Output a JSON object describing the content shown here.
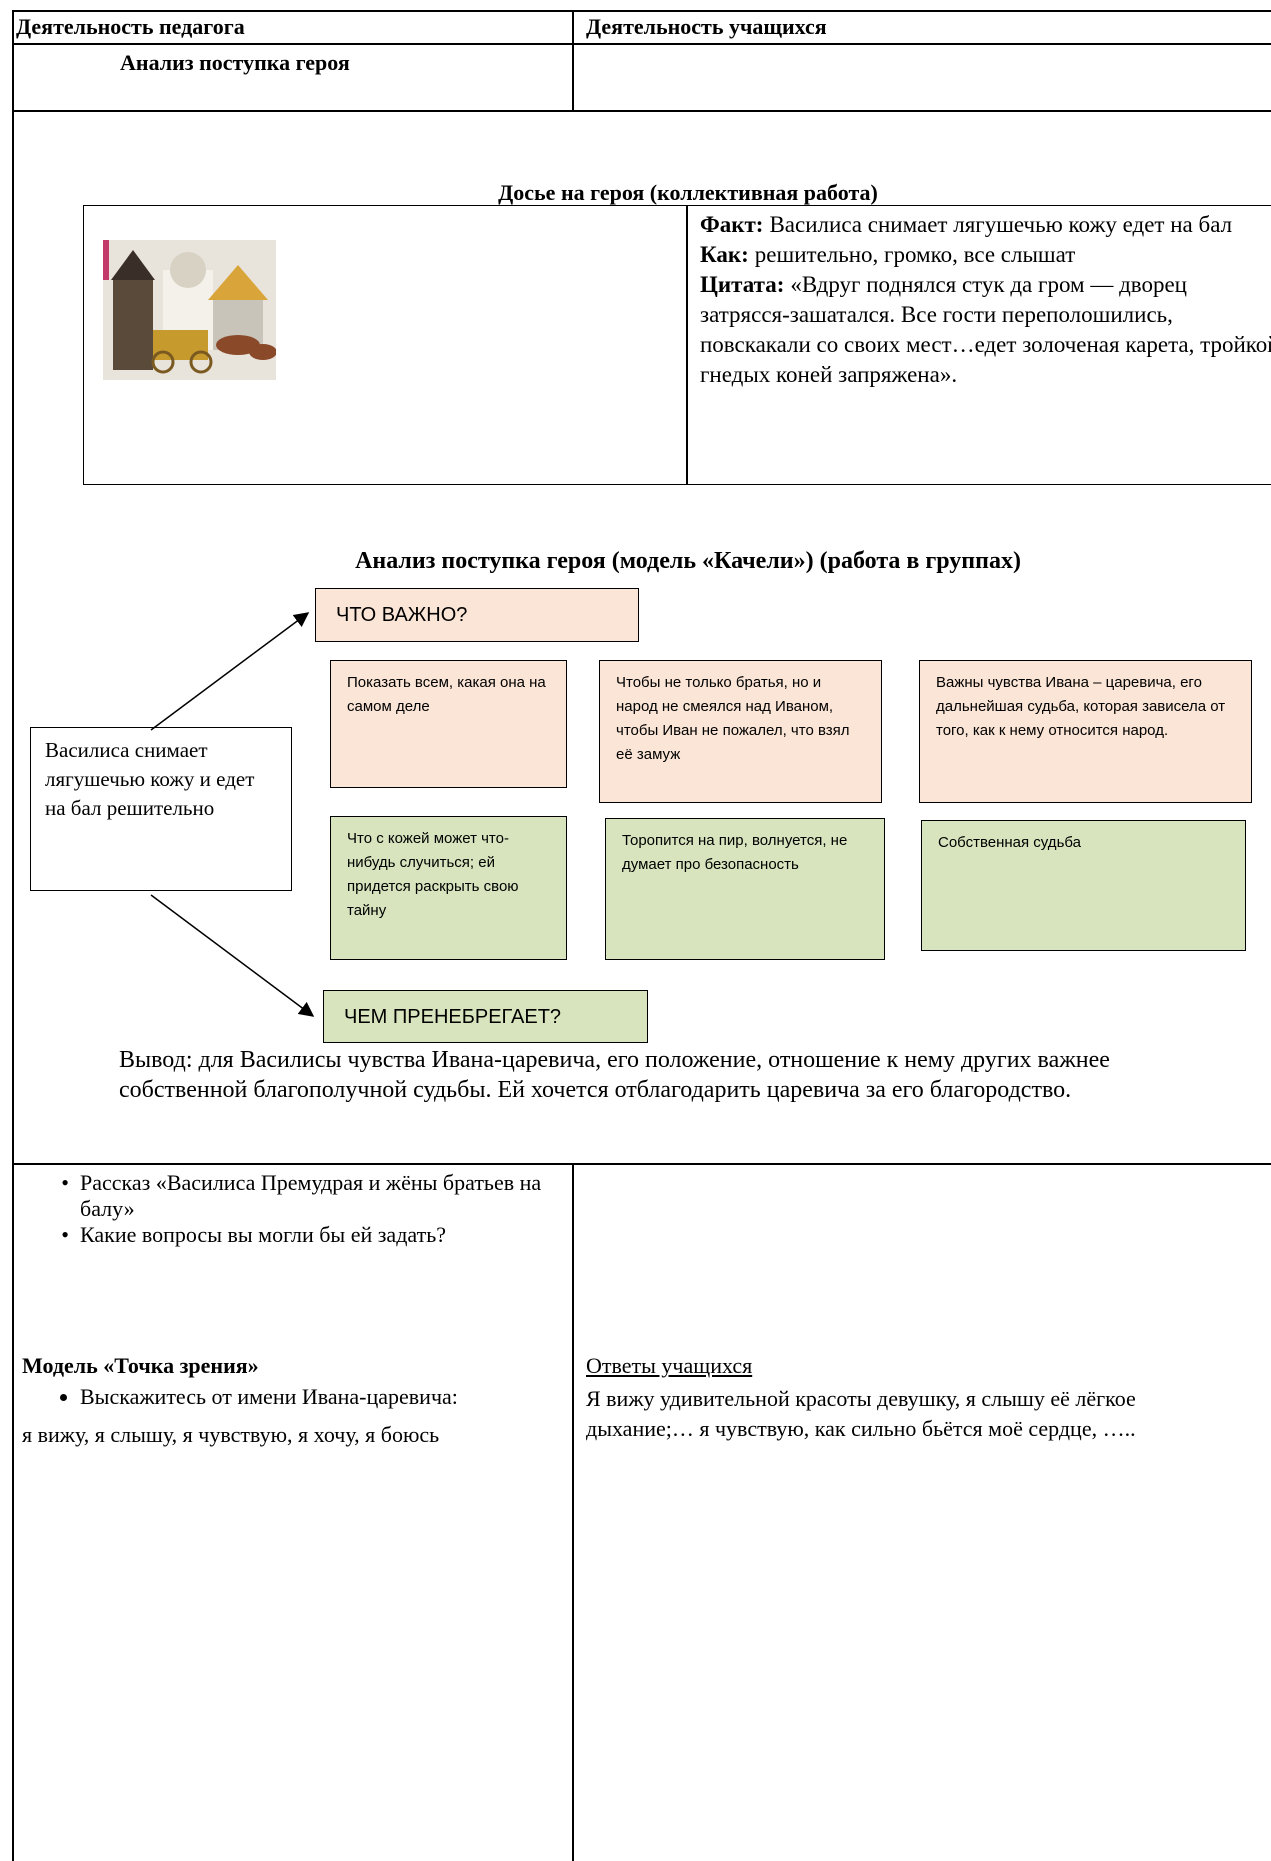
{
  "header": {
    "teacher": "Деятельность педагога",
    "students": "Деятельность учащихся"
  },
  "row1": {
    "teacher": "Анализ поступка героя"
  },
  "dossier": {
    "title": "Досье на героя (коллективная работа)",
    "lines": [
      {
        "label": "Факт:",
        "text": "Василиса снимает лягушечью кожу едет на бал"
      },
      {
        "label": "Как:",
        "text": "решительно, громко, все слышат"
      },
      {
        "label": "Цитата:",
        "text": "«Вдруг поднялся стук да гром — дворец затрясся-зашатался. Все гости переполошились, повскакали со своих мест…едет золоченая карета, тройкой гнедых коней запряжена»."
      }
    ]
  },
  "swing": {
    "title": "Анализ поступка героя (модель «Качели») (работа в группах)",
    "source": "Василиса снимает лягушечью кожу и едет на бал решительно",
    "important_label": "ЧТО ВАЖНО?",
    "important": [
      "Показать всем, какая она на самом деле",
      "Чтобы не только братья, но и народ не смеялся над Иваном, чтобы Иван не пожалел, что взял её замуж",
      "Важны чувства Ивана – царевича, его дальнейшая судьба, которая зависела от того, как к нему относится народ."
    ],
    "neglect_label": "ЧЕМ ПРЕНЕБРЕГАЕТ?",
    "neglect": [
      "Что с кожей может что-нибудь случиться; ей придется раскрыть свою тайну",
      "Торопится на пир, волнуется, не думает про безопасность",
      "Собственная судьба"
    ],
    "conclusion": "Вывод: для Василисы чувства Ивана-царевича, его положение, отношение к нему других важнее собственной благополучной судьбы. Ей хочется отблагодарить царевича за его благородство."
  },
  "row3": {
    "bullets": [
      "Рассказ «Василиса Премудрая и жёны братьев на балу»",
      "Какие вопросы вы могли бы ей задать?"
    ],
    "model_title": "Модель «Точка зрения»",
    "model_bullet": "Выскажитесь от имени Ивана-царевича:",
    "model_note": "я вижу, я слышу, я чувствую, я хочу, я боюсь",
    "answers_title": "Ответы учащихся",
    "answers": "Я вижу удивительной красоты девушку, я слышу её лёгкое дыхание;… я чувствую, как сильно бьётся моё сердце, ….."
  }
}
